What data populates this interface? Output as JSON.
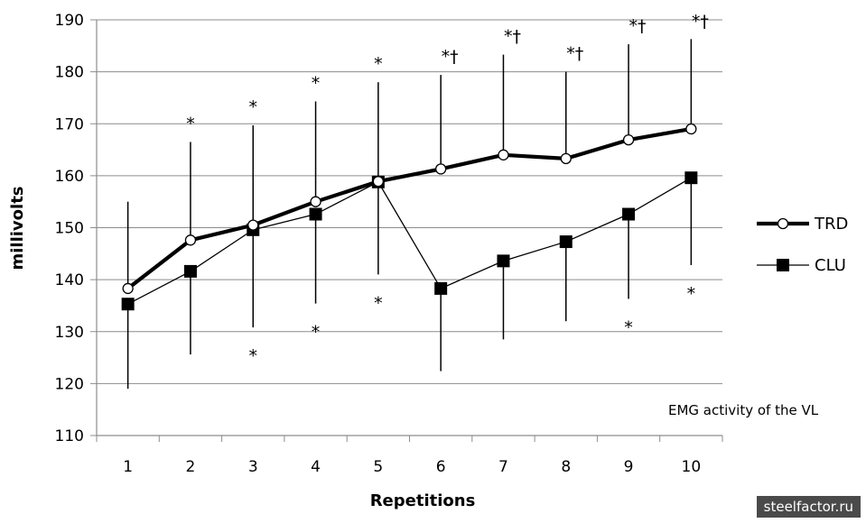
{
  "chart_data": {
    "type": "line",
    "title": "",
    "xlabel": "Repetitions",
    "ylabel": "millivolts",
    "categories": [
      "1",
      "2",
      "3",
      "4",
      "5",
      "6",
      "7",
      "8",
      "9",
      "10"
    ],
    "ylim": [
      110,
      190
    ],
    "yticks": [
      "110",
      "120",
      "130",
      "140",
      "150",
      "160",
      "170",
      "180",
      "190"
    ],
    "grid": "horizontal",
    "legend_position": "right",
    "series": [
      {
        "name": "TRD",
        "marker": "open-circle",
        "values": [
          138.3,
          147.6,
          150.5,
          155.0,
          158.9,
          161.3,
          164.0,
          163.3,
          166.9,
          169.0
        ],
        "error_upper": [
          155.0,
          166.5,
          169.7,
          174.3,
          178.0,
          179.4,
          183.3,
          180.0,
          185.3,
          186.3
        ],
        "sig_upper": [
          "",
          "*",
          "*",
          "*",
          "*",
          "*†",
          "*†",
          "*†",
          "*†",
          "*†"
        ]
      },
      {
        "name": "CLU",
        "marker": "filled-square",
        "values": [
          135.3,
          141.6,
          149.6,
          152.6,
          158.8,
          138.3,
          143.6,
          147.3,
          152.6,
          159.6
        ],
        "error_lower": [
          119.0,
          125.6,
          130.8,
          135.4,
          141.0,
          122.4,
          128.5,
          132.0,
          136.3,
          142.8
        ],
        "sig_lower": [
          "",
          "",
          "*",
          "*",
          "*",
          "",
          "",
          "",
          "*",
          "*"
        ]
      }
    ],
    "annotation": "EMG activity of the VL"
  },
  "watermark": "steelfactor.ru"
}
